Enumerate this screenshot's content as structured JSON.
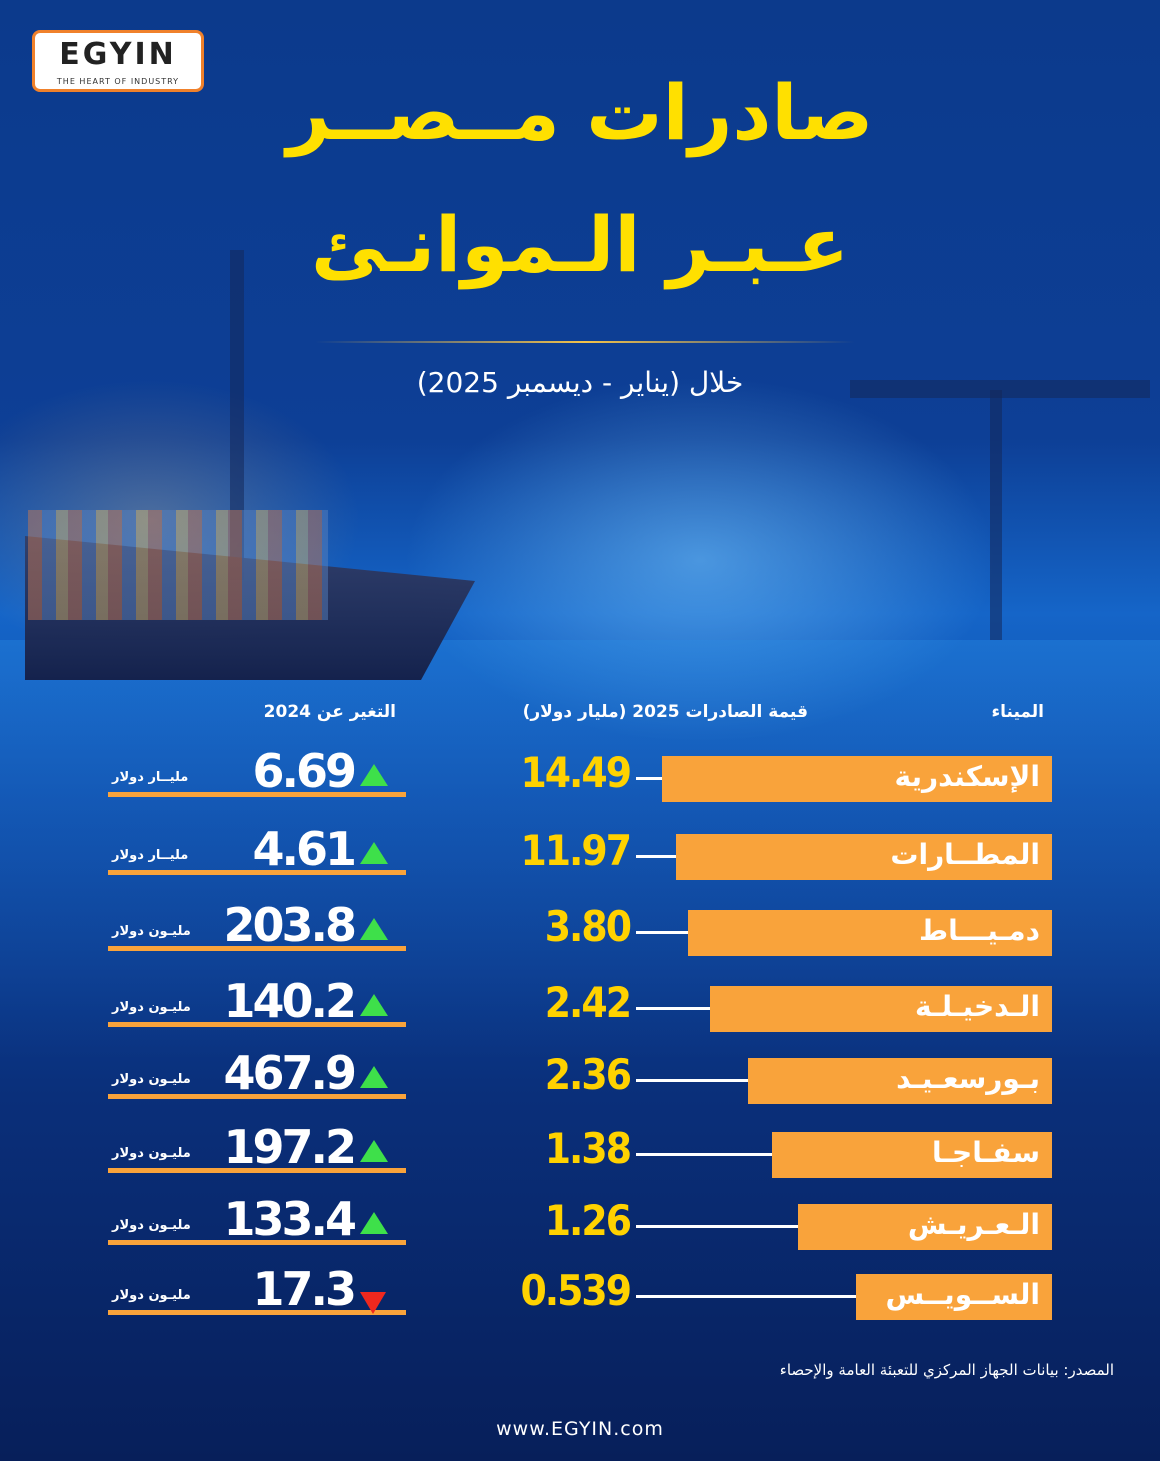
{
  "logo": {
    "name": "EGYIN",
    "tagline": "THE HEART OF INDUSTRY"
  },
  "title_line1": "صادرات مــصــر",
  "title_line2": "عـبـر الـموانـئ",
  "subtitle": "خلال (يناير - ديسمبر 2025)",
  "columns": {
    "port": "الميناء",
    "value": "قيمة الصادرات 2025 (مليار دولار)",
    "change": "التغير عن 2024"
  },
  "rows": [
    {
      "port": "الإسكندرية",
      "value": "14.49",
      "change": "6.69",
      "unit": "مليــار دولار",
      "direction": "up"
    },
    {
      "port": "المطــارات",
      "value": "11.97",
      "change": "4.61",
      "unit": "مليــار دولار",
      "direction": "up"
    },
    {
      "port": "دمـيـــاط",
      "value": "3.80",
      "change": "203.8",
      "unit": "مليـون دولار",
      "direction": "up"
    },
    {
      "port": "الـدخيـلـة",
      "value": "2.42",
      "change": "140.2",
      "unit": "مليـون دولار",
      "direction": "up"
    },
    {
      "port": "بـورسعـيـد",
      "value": "2.36",
      "change": "467.9",
      "unit": "مليـون دولار",
      "direction": "up"
    },
    {
      "port": "سفـاجـا",
      "value": "1.38",
      "change": "197.2",
      "unit": "مليـون دولار",
      "direction": "up"
    },
    {
      "port": "الـعـريـش",
      "value": "1.26",
      "change": "133.4",
      "unit": "مليـون دولار",
      "direction": "up"
    },
    {
      "port": "الســويــس",
      "value": "0.539",
      "change": "17.3",
      "unit": "مليـون دولار",
      "direction": "down"
    }
  ],
  "colors": {
    "accent": "#f9a33b",
    "title": "#ffe000",
    "value": "#ffd200",
    "up": "#3ee04a",
    "down": "#f0281e"
  },
  "source": "المصدر: بيانات الجهاز المركزي للتعبئة العامة والإحصاء",
  "website": "www.EGYIN.com"
}
